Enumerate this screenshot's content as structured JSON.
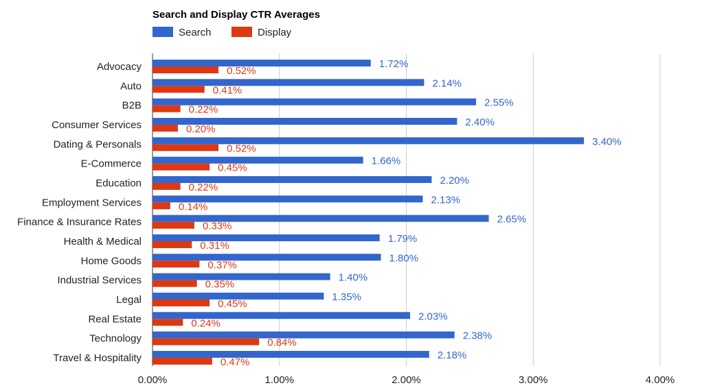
{
  "colors": {
    "search": "#3366cc",
    "display": "#dc3912",
    "grid": "#cccccc",
    "axis": "#333333"
  },
  "chart_data": {
    "type": "bar",
    "orientation": "horizontal",
    "title": "Search and Display CTR Averages",
    "legend_position": "top-left",
    "grid": true,
    "xlim": [
      0,
      4
    ],
    "x_ticks": [
      "0.00%",
      "1.00%",
      "2.00%",
      "3.00%",
      "4.00%"
    ],
    "categories": [
      "Advocacy",
      "Auto",
      "B2B",
      "Consumer Services",
      "Dating & Personals",
      "E-Commerce",
      "Education",
      "Employment Services",
      "Finance & Insurance Rates",
      "Health & Medical",
      "Home Goods",
      "Industrial Services",
      "Legal",
      "Real Estate",
      "Technology",
      "Travel & Hospitality"
    ],
    "series": [
      {
        "name": "Search",
        "values": [
          1.72,
          2.14,
          2.55,
          2.4,
          3.4,
          1.66,
          2.2,
          2.13,
          2.65,
          1.79,
          1.8,
          1.4,
          1.35,
          2.03,
          2.38,
          2.18
        ],
        "labels": [
          "1.72%",
          "2.14%",
          "2.55%",
          "2.40%",
          "3.40%",
          "1.66%",
          "2.20%",
          "2.13%",
          "2.65%",
          "1.79%",
          "1.80%",
          "1.40%",
          "1.35%",
          "2.03%",
          "2.38%",
          "2.18%"
        ]
      },
      {
        "name": "Display",
        "values": [
          0.52,
          0.41,
          0.22,
          0.2,
          0.52,
          0.45,
          0.22,
          0.14,
          0.33,
          0.31,
          0.37,
          0.35,
          0.45,
          0.24,
          0.84,
          0.47
        ],
        "labels": [
          "0.52%",
          "0.41%",
          "0.22%",
          "0.20%",
          "0.52%",
          "0.45%",
          "0.22%",
          "0.14%",
          "0.33%",
          "0.31%",
          "0.37%",
          "0.35%",
          "0.45%",
          "0.24%",
          "0.84%",
          "0.47%"
        ]
      }
    ]
  }
}
